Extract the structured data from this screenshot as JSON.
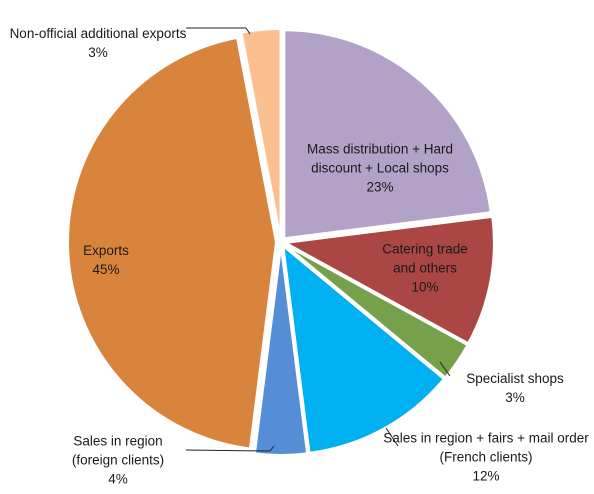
{
  "chart_data": {
    "type": "pie",
    "categories": [
      "Mass distribution + Hard discount + Local shops",
      "Catering trade and others",
      "Specialist shops",
      "Sales in region + fairs + mail order (French clients)",
      "Sales in region (foreign clients)",
      "Exports",
      "Non-official additional exports"
    ],
    "values": [
      23,
      10,
      3,
      12,
      4,
      45,
      3
    ],
    "value_labels": [
      "23%",
      "10%",
      "3%",
      "12%",
      "4%",
      "45%",
      "3%"
    ],
    "colors": [
      "#b3a2c7",
      "#aa4643",
      "#77a04b",
      "#00b0f0",
      "#558ed5",
      "#d9843d",
      "#fac090"
    ]
  }
}
